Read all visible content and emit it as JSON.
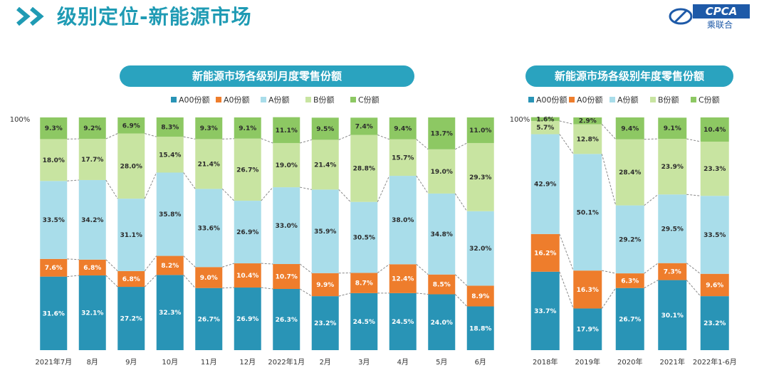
{
  "header": {
    "title": "级别定位-新能源市场",
    "logo_text": "CPCA",
    "logo_sub": "乘联合"
  },
  "colors": {
    "A00": "#2994b6",
    "A0": "#ee7d2c",
    "A": "#a9ddea",
    "B": "#c8e4a1",
    "C": "#8dc863",
    "title": "#1f9bb4",
    "pill": "#2aa3bf"
  },
  "chart_data": [
    {
      "type": "bar",
      "stacked": true,
      "title": "新能源市场各级别月度零售份额",
      "y_axis_top_label": "100%",
      "legend": [
        "A00份额",
        "A0份额",
        "A份额",
        "B份额",
        "C份额"
      ],
      "categories": [
        "2021年7月",
        "8月",
        "9月",
        "10月",
        "11月",
        "12月",
        "2022年1月",
        "2月",
        "3月",
        "4月",
        "5月",
        "6月"
      ],
      "series": [
        {
          "name": "A00份额",
          "values": [
            31.6,
            32.1,
            27.2,
            32.3,
            26.7,
            26.9,
            26.3,
            23.2,
            24.5,
            24.5,
            24.0,
            18.8
          ]
        },
        {
          "name": "A0份额",
          "values": [
            7.6,
            6.8,
            6.8,
            8.2,
            9.0,
            10.4,
            10.7,
            9.9,
            8.7,
            12.4,
            8.5,
            8.9
          ]
        },
        {
          "name": "A份额",
          "values": [
            33.5,
            34.2,
            31.1,
            35.8,
            33.6,
            26.9,
            33.0,
            35.9,
            30.5,
            38.0,
            34.8,
            32.0
          ]
        },
        {
          "name": "B份额",
          "values": [
            18.0,
            17.7,
            28.0,
            15.4,
            21.4,
            26.7,
            19.0,
            21.4,
            28.8,
            15.7,
            19.0,
            29.3
          ]
        },
        {
          "name": "C份额",
          "values": [
            9.3,
            9.2,
            6.9,
            8.3,
            9.3,
            9.1,
            11.1,
            9.5,
            7.4,
            9.4,
            13.7,
            11.0
          ]
        }
      ],
      "ylim": [
        0,
        100
      ]
    },
    {
      "type": "bar",
      "stacked": true,
      "title": "新能源市场各级别年度零售份额",
      "y_axis_top_label": "100%",
      "legend": [
        "A00份额",
        "A0份额",
        "A份额",
        "B份额",
        "C份额"
      ],
      "categories": [
        "2018年",
        "2019年",
        "2020年",
        "2021年",
        "2022年1-6月"
      ],
      "series": [
        {
          "name": "A00份额",
          "values": [
            33.7,
            17.9,
            26.7,
            30.1,
            23.2
          ]
        },
        {
          "name": "A0份额",
          "values": [
            16.2,
            16.3,
            6.3,
            7.3,
            9.6
          ]
        },
        {
          "name": "A份额",
          "values": [
            42.9,
            50.1,
            29.2,
            29.5,
            33.5
          ]
        },
        {
          "name": "B份额",
          "values": [
            5.7,
            12.8,
            28.4,
            23.9,
            23.3
          ]
        },
        {
          "name": "C份额",
          "values": [
            1.6,
            2.9,
            9.4,
            9.1,
            10.4
          ]
        }
      ],
      "ylim": [
        0,
        100
      ]
    }
  ]
}
